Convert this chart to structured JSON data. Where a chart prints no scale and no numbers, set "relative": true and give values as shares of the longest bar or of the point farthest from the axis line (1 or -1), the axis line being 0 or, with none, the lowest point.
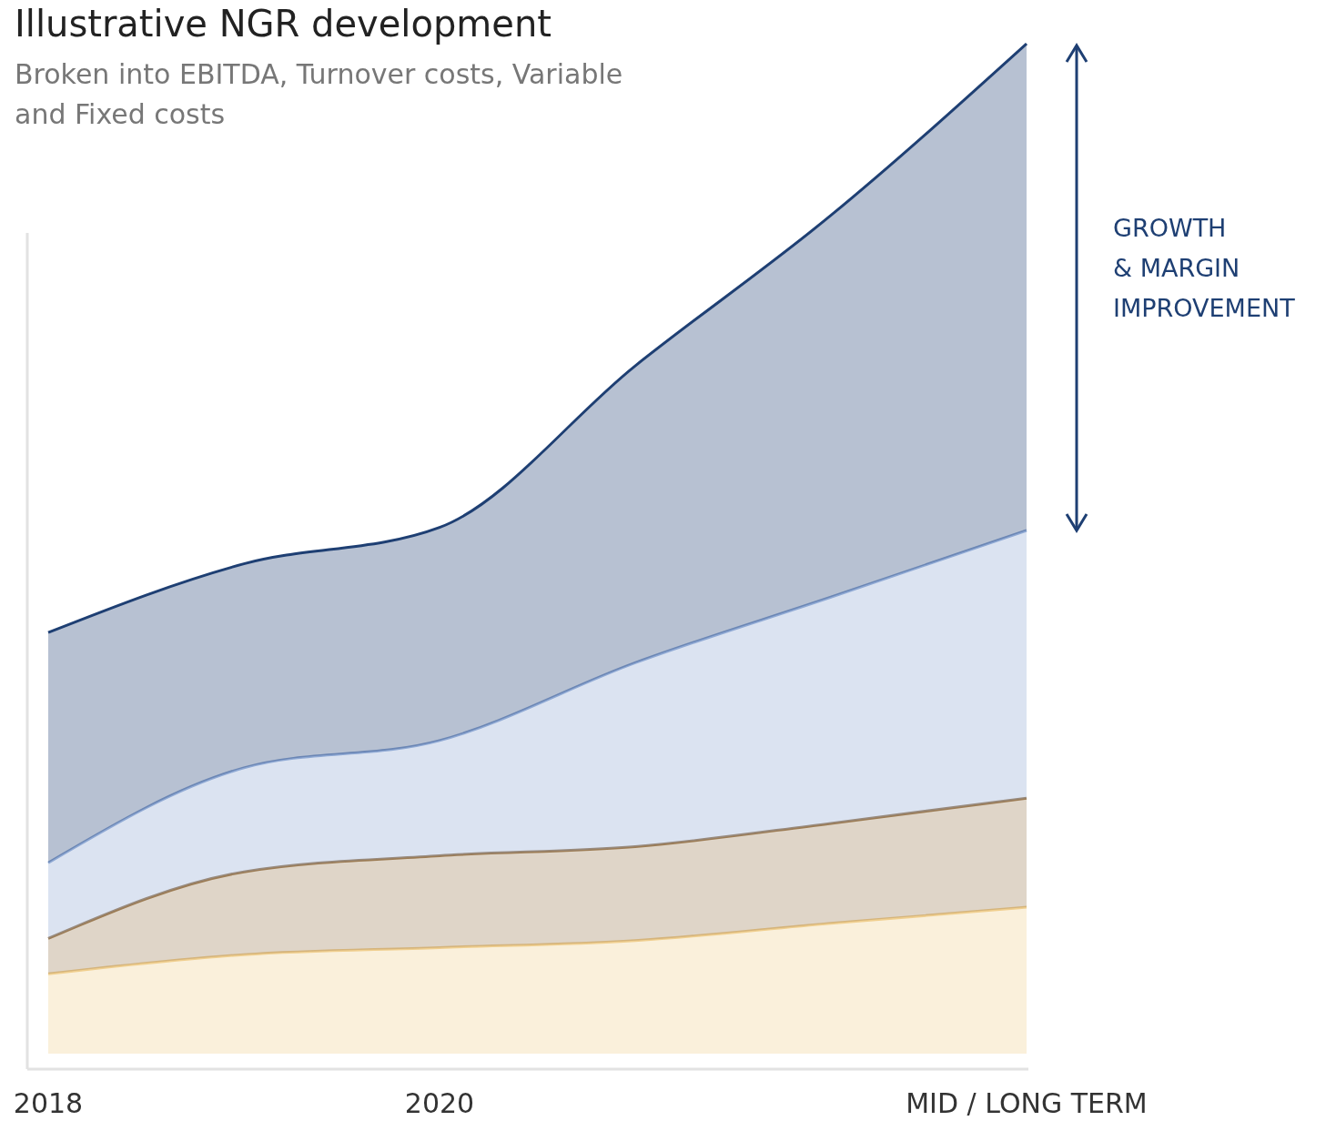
{
  "chart_data": {
    "type": "area",
    "title": "Illustrative NGR development",
    "subtitle": "Broken into EBITDA, Turnover costs, Variable and Fixed costs",
    "categories": [
      "2018",
      null,
      "2020",
      null,
      null,
      "MID / LONG TERM"
    ],
    "stacked": true,
    "relative": true,
    "series": [
      {
        "color": "#f0cf8f",
        "values": [
          0.079,
          0.098,
          0.105,
          0.112,
          0.129,
          0.145
        ]
      },
      {
        "color": "#9c7c55",
        "values": [
          0.035,
          0.082,
          0.091,
          0.093,
          0.099,
          0.108
        ]
      },
      {
        "color": "#8fa9d4",
        "values": [
          0.075,
          0.103,
          0.114,
          0.182,
          0.224,
          0.265
        ]
      },
      {
        "color": "#1e3f73",
        "values": [
          0.228,
          0.202,
          0.211,
          0.294,
          0.378,
          0.482
        ]
      }
    ],
    "annotations": [
      "GROWTH\n& MARGIN\nIMPROVEMENT"
    ]
  }
}
